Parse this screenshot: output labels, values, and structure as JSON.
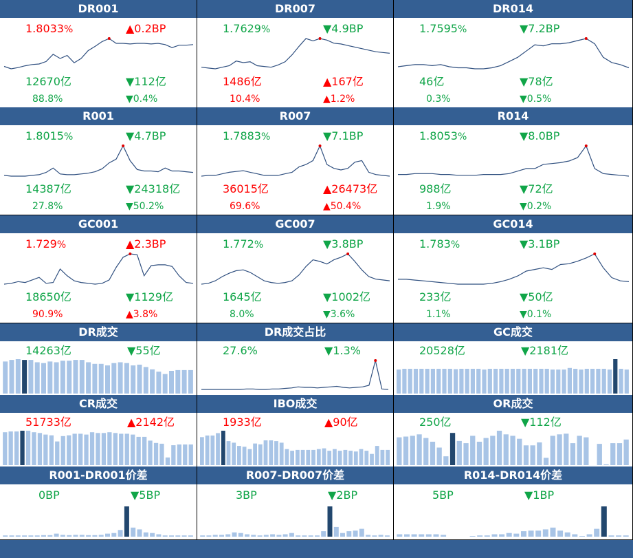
{
  "colors": {
    "header": "#345f93",
    "up": "#ff0000",
    "down": "#10a548",
    "line": "#2f4f7f",
    "bar": "#a8c4e6",
    "bar_highlight": "#22476e"
  },
  "rate_panels": [
    {
      "title": "DR001",
      "rate": "1.8033",
      "rate_unit": "%",
      "rate_dir": "up",
      "chg": "▲0.2BP",
      "chg_dir": "up",
      "vol": "12670亿",
      "vol_dir": "down",
      "vol_chg": "▼112亿",
      "vol_chg_dir": "down",
      "share": "88.8%",
      "share_dir": "down",
      "share_chg": "▼0.4%",
      "share_chg_dir": "down",
      "series": [
        1.42,
        1.38,
        1.4,
        1.43,
        1.45,
        1.46,
        1.5,
        1.62,
        1.55,
        1.6,
        1.48,
        1.55,
        1.68,
        1.75,
        1.83,
        1.88,
        1.8,
        1.8,
        1.79,
        1.8,
        1.8,
        1.79,
        1.8,
        1.78,
        1.73,
        1.77,
        1.77,
        1.78
      ],
      "peak_index": 15
    },
    {
      "title": "DR007",
      "rate": "1.7629",
      "rate_unit": "%",
      "rate_dir": "down",
      "chg": "▼4.9BP",
      "chg_dir": "down",
      "vol": "1486亿",
      "vol_dir": "up",
      "vol_chg": "▲167亿",
      "vol_chg_dir": "up",
      "share": "10.4%",
      "share_dir": "up",
      "share_chg": "▲1.2%",
      "share_chg_dir": "up",
      "series": [
        1.39,
        1.38,
        1.37,
        1.39,
        1.41,
        1.47,
        1.45,
        1.46,
        1.41,
        1.4,
        1.39,
        1.42,
        1.46,
        1.55,
        1.66,
        1.76,
        1.73,
        1.76,
        1.74,
        1.7,
        1.69,
        1.67,
        1.65,
        1.63,
        1.61,
        1.59,
        1.58,
        1.57
      ],
      "peak_index": 17
    },
    {
      "title": "DR014",
      "rate": "1.7595",
      "rate_unit": "%",
      "rate_dir": "down",
      "chg": "▼7.2BP",
      "chg_dir": "down",
      "vol": "46亿",
      "vol_dir": "down",
      "vol_chg": "▼78亿",
      "vol_chg_dir": "down",
      "share": "0.3%",
      "share_dir": "down",
      "share_chg": "▼0.5%",
      "share_chg_dir": "down",
      "series": [
        1.51,
        1.52,
        1.53,
        1.53,
        1.52,
        1.53,
        1.51,
        1.5,
        1.5,
        1.49,
        1.49,
        1.5,
        1.52,
        1.56,
        1.6,
        1.66,
        1.72,
        1.71,
        1.73,
        1.73,
        1.74,
        1.76,
        1.78,
        1.73,
        1.6,
        1.55,
        1.53,
        1.5
      ],
      "peak_index": 22
    },
    {
      "title": "R001",
      "rate": "1.8015",
      "rate_unit": "%",
      "rate_dir": "down",
      "chg": "▼4.7BP",
      "chg_dir": "down",
      "vol": "14387亿",
      "vol_dir": "down",
      "vol_chg": "▼24318亿",
      "vol_chg_dir": "down",
      "share": "27.8%",
      "share_dir": "down",
      "share_chg": "▼50.2%",
      "share_chg_dir": "down",
      "series": [
        1.4,
        1.39,
        1.39,
        1.39,
        1.4,
        1.41,
        1.44,
        1.5,
        1.42,
        1.41,
        1.41,
        1.42,
        1.43,
        1.45,
        1.49,
        1.57,
        1.62,
        1.8,
        1.6,
        1.48,
        1.46,
        1.46,
        1.45,
        1.5,
        1.46,
        1.46,
        1.45,
        1.44
      ],
      "peak_index": 17
    },
    {
      "title": "R007",
      "rate": "1.7883",
      "rate_unit": "%",
      "rate_dir": "down",
      "chg": "▼7.1BP",
      "chg_dir": "down",
      "vol": "36015亿",
      "vol_dir": "up",
      "vol_chg": "▲26473亿",
      "vol_chg_dir": "up",
      "share": "69.6%",
      "share_dir": "up",
      "share_chg": "▲50.4%",
      "share_chg_dir": "up",
      "series": [
        1.4,
        1.41,
        1.41,
        1.43,
        1.45,
        1.46,
        1.47,
        1.45,
        1.43,
        1.41,
        1.41,
        1.41,
        1.43,
        1.45,
        1.52,
        1.55,
        1.6,
        1.79,
        1.55,
        1.5,
        1.48,
        1.5,
        1.58,
        1.6,
        1.45,
        1.42,
        1.41,
        1.4
      ],
      "peak_index": 17
    },
    {
      "title": "R014",
      "rate": "1.8053",
      "rate_unit": "%",
      "rate_dir": "down",
      "chg": "▼8.0BP",
      "chg_dir": "down",
      "vol": "988亿",
      "vol_dir": "down",
      "vol_chg": "▼72亿",
      "vol_chg_dir": "down",
      "share": "1.9%",
      "share_dir": "down",
      "share_chg": "▼0.2%",
      "share_chg_dir": "down",
      "series": [
        1.46,
        1.46,
        1.47,
        1.47,
        1.47,
        1.46,
        1.46,
        1.45,
        1.45,
        1.45,
        1.46,
        1.46,
        1.46,
        1.47,
        1.5,
        1.53,
        1.53,
        1.58,
        1.59,
        1.6,
        1.62,
        1.66,
        1.8,
        1.53,
        1.47,
        1.46,
        1.45,
        1.44
      ],
      "peak_index": 22
    },
    {
      "title": "GC001",
      "rate": "1.729",
      "rate_unit": "%",
      "rate_dir": "up",
      "chg": "▲2.3BP",
      "chg_dir": "up",
      "vol": "18650亿",
      "vol_dir": "down",
      "vol_chg": "▼1129亿",
      "vol_chg_dir": "down",
      "share": "90.9%",
      "share_dir": "up",
      "share_chg": "▲3.8%",
      "share_chg_dir": "up",
      "series": [
        1.4,
        1.41,
        1.43,
        1.42,
        1.45,
        1.48,
        1.41,
        1.42,
        1.58,
        1.5,
        1.44,
        1.42,
        1.41,
        1.4,
        1.41,
        1.45,
        1.6,
        1.72,
        1.76,
        1.75,
        1.5,
        1.62,
        1.63,
        1.63,
        1.61,
        1.5,
        1.42,
        1.41
      ],
      "peak_index": 18
    },
    {
      "title": "GC007",
      "rate": "1.772",
      "rate_unit": "%",
      "rate_dir": "down",
      "chg": "▼3.8BP",
      "chg_dir": "down",
      "vol": "1645亿",
      "vol_dir": "down",
      "vol_chg": "▼1002亿",
      "vol_chg_dir": "down",
      "share": "8.0%",
      "share_dir": "down",
      "share_chg": "▼3.6%",
      "share_chg_dir": "down",
      "series": [
        1.41,
        1.42,
        1.45,
        1.5,
        1.54,
        1.57,
        1.58,
        1.55,
        1.5,
        1.45,
        1.43,
        1.42,
        1.43,
        1.45,
        1.52,
        1.62,
        1.7,
        1.68,
        1.65,
        1.7,
        1.73,
        1.77,
        1.68,
        1.58,
        1.5,
        1.47,
        1.46,
        1.45
      ],
      "peak_index": 21
    },
    {
      "title": "GC014",
      "rate": "1.783",
      "rate_unit": "%",
      "rate_dir": "down",
      "chg": "▼3.1BP",
      "chg_dir": "down",
      "vol": "233亿",
      "vol_dir": "down",
      "vol_chg": "▼50亿",
      "vol_chg_dir": "down",
      "share": "1.1%",
      "share_dir": "down",
      "share_chg": "▼0.1%",
      "share_chg_dir": "down",
      "series": [
        1.48,
        1.48,
        1.47,
        1.46,
        1.45,
        1.44,
        1.43,
        1.42,
        1.42,
        1.42,
        1.42,
        1.43,
        1.45,
        1.48,
        1.52,
        1.58,
        1.6,
        1.62,
        1.6,
        1.66,
        1.67,
        1.7,
        1.74,
        1.79,
        1.62,
        1.5,
        1.46,
        1.45
      ],
      "peak_index": 23
    }
  ],
  "volume_panels": [
    {
      "title": "DR成交",
      "value": "14263亿",
      "value_dir": "down",
      "chg": "▼55亿",
      "chg_dir": "down",
      "kind": "bar",
      "series": [
        82,
        86,
        88,
        86,
        86,
        80,
        78,
        82,
        80,
        84,
        84,
        86,
        86,
        80,
        76,
        76,
        72,
        78,
        80,
        78,
        72,
        74,
        68,
        62,
        56,
        50,
        58,
        60,
        60,
        60
      ],
      "highlight_index": 3
    },
    {
      "title": "DR成交占比",
      "value": "27.6%",
      "value_dir": "down",
      "chg": "▼1.3%",
      "chg_dir": "down",
      "kind": "line",
      "series": [
        4,
        4,
        4,
        4,
        4,
        4,
        4,
        5,
        5,
        4,
        4,
        5,
        5,
        6,
        7,
        9,
        8,
        8,
        7,
        8,
        9,
        10,
        8,
        7,
        8,
        9,
        12,
        60,
        5,
        4
      ],
      "peak_index": 27
    },
    {
      "title": "GC成交",
      "value": "20528亿",
      "value_dir": "down",
      "chg": "▼2181亿",
      "chg_dir": "down",
      "kind": "bar",
      "series": [
        60,
        62,
        62,
        62,
        62,
        62,
        62,
        62,
        62,
        62,
        61,
        62,
        62,
        62,
        62,
        60,
        62,
        62,
        62,
        62,
        62,
        62,
        62,
        62,
        62,
        62,
        62,
        60,
        60,
        60,
        64,
        62,
        60,
        62,
        62,
        62,
        62,
        60,
        86,
        62,
        60
      ],
      "highlight_index": 38
    }
  ],
  "volume_panels_2": [
    {
      "title": "CR成交",
      "value": "51733亿",
      "value_dir": "up",
      "chg": "▲2142亿",
      "chg_dir": "up",
      "kind": "bar",
      "series": [
        86,
        88,
        88,
        90,
        90,
        86,
        84,
        80,
        78,
        62,
        76,
        78,
        82,
        82,
        80,
        86,
        84,
        84,
        86,
        84,
        82,
        82,
        80,
        74,
        74,
        64,
        58,
        56,
        20,
        52,
        54,
        54,
        54
      ],
      "highlight_index": 3
    },
    {
      "title": "IBO成交",
      "value": "1933亿",
      "value_dir": "up",
      "chg": "▲90亿",
      "chg_dir": "up",
      "kind": "bar",
      "series": [
        70,
        74,
        74,
        80,
        86,
        60,
        56,
        48,
        46,
        40,
        54,
        52,
        62,
        62,
        60,
        56,
        40,
        36,
        38,
        38,
        38,
        38,
        40,
        42,
        36,
        40,
        36,
        38,
        36,
        34,
        40,
        36,
        28,
        48,
        38,
        38
      ],
      "highlight_index": 4
    },
    {
      "title": "OR成交",
      "value": "250亿",
      "value_dir": "down",
      "chg": "▼112亿",
      "chg_dir": "down",
      "kind": "bar",
      "series": [
        76,
        78,
        80,
        84,
        74,
        64,
        48,
        24,
        88,
        66,
        60,
        80,
        64,
        74,
        80,
        94,
        84,
        80,
        72,
        54,
        54,
        62,
        20,
        80,
        84,
        86,
        60,
        80,
        76,
        0,
        58,
        2,
        60,
        60,
        70
      ],
      "highlight_index": 8
    }
  ],
  "spread_panels": [
    {
      "title": "R001-DR001价差",
      "value": "0BP",
      "value_dir": "down",
      "chg": "▼5BP",
      "chg_dir": "down",
      "series": [
        4,
        4,
        4,
        4,
        4,
        4,
        5,
        5,
        10,
        6,
        5,
        6,
        6,
        5,
        5,
        6,
        10,
        12,
        22,
        100,
        30,
        24,
        14,
        12,
        8,
        4,
        4,
        4,
        4,
        4
      ],
      "highlight_index": 19
    },
    {
      "title": "R007-DR007价差",
      "value": "3BP",
      "value_dir": "down",
      "chg": "▼2BP",
      "chg_dir": "down",
      "series": [
        4,
        4,
        6,
        6,
        8,
        14,
        12,
        8,
        6,
        4,
        6,
        8,
        6,
        8,
        12,
        4,
        4,
        4,
        4,
        18,
        100,
        32,
        12,
        18,
        20,
        26,
        6,
        4,
        6,
        4
      ],
      "highlight_index": 20
    },
    {
      "title": "R014-DR014价差",
      "value": "5BP",
      "value_dir": "down",
      "chg": "▼1BP",
      "chg_dir": "down",
      "series": [
        8,
        8,
        8,
        8,
        8,
        8,
        6,
        0,
        0,
        0,
        2,
        4,
        4,
        8,
        8,
        12,
        10,
        18,
        20,
        20,
        24,
        30,
        20,
        14,
        8,
        2,
        8,
        26,
        100,
        4,
        4,
        4
      ],
      "highlight_index": 28
    }
  ]
}
